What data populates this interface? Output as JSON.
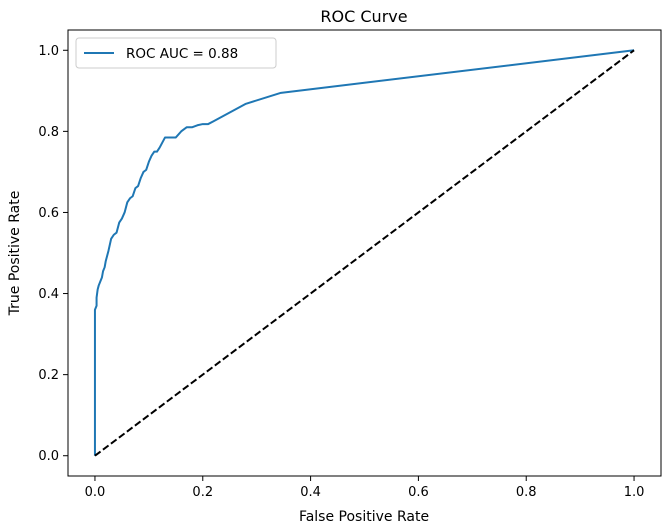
{
  "chart_data": {
    "type": "line",
    "title": "ROC Curve",
    "xlabel": "False Positive Rate",
    "ylabel": "True Positive Rate",
    "xlim": [
      -0.05,
      1.05
    ],
    "ylim": [
      -0.05,
      1.05
    ],
    "xticks": [
      "0.0",
      "0.2",
      "0.4",
      "0.6",
      "0.8",
      "1.0"
    ],
    "yticks": [
      "0.0",
      "0.2",
      "0.4",
      "0.6",
      "0.8",
      "1.0"
    ],
    "grid": false,
    "legend_position": "top-left",
    "series": [
      {
        "name": "ROC AUC = 0.88",
        "color": "#1f77b4",
        "style": "solid",
        "x": [
          0.0,
          0.0,
          0.003,
          0.003,
          0.005,
          0.007,
          0.01,
          0.013,
          0.015,
          0.018,
          0.02,
          0.025,
          0.03,
          0.035,
          0.04,
          0.045,
          0.05,
          0.055,
          0.06,
          0.065,
          0.07,
          0.075,
          0.08,
          0.085,
          0.09,
          0.095,
          0.1,
          0.105,
          0.11,
          0.115,
          0.12,
          0.13,
          0.14,
          0.15,
          0.16,
          0.17,
          0.175,
          0.18,
          0.19,
          0.2,
          0.205,
          0.21,
          0.22,
          0.28,
          0.345,
          1.0
        ],
        "y": [
          0.0,
          0.36,
          0.37,
          0.39,
          0.41,
          0.42,
          0.43,
          0.44,
          0.455,
          0.465,
          0.48,
          0.505,
          0.535,
          0.545,
          0.55,
          0.575,
          0.585,
          0.6,
          0.625,
          0.635,
          0.64,
          0.66,
          0.665,
          0.685,
          0.7,
          0.705,
          0.725,
          0.74,
          0.75,
          0.75,
          0.76,
          0.785,
          0.785,
          0.785,
          0.8,
          0.81,
          0.81,
          0.81,
          0.815,
          0.818,
          0.818,
          0.818,
          0.825,
          0.868,
          0.895,
          1.0
        ]
      },
      {
        "name": "",
        "color": "#000000",
        "style": "dashed",
        "x": [
          0.0,
          1.0
        ],
        "y": [
          0.0,
          1.0
        ]
      }
    ]
  }
}
